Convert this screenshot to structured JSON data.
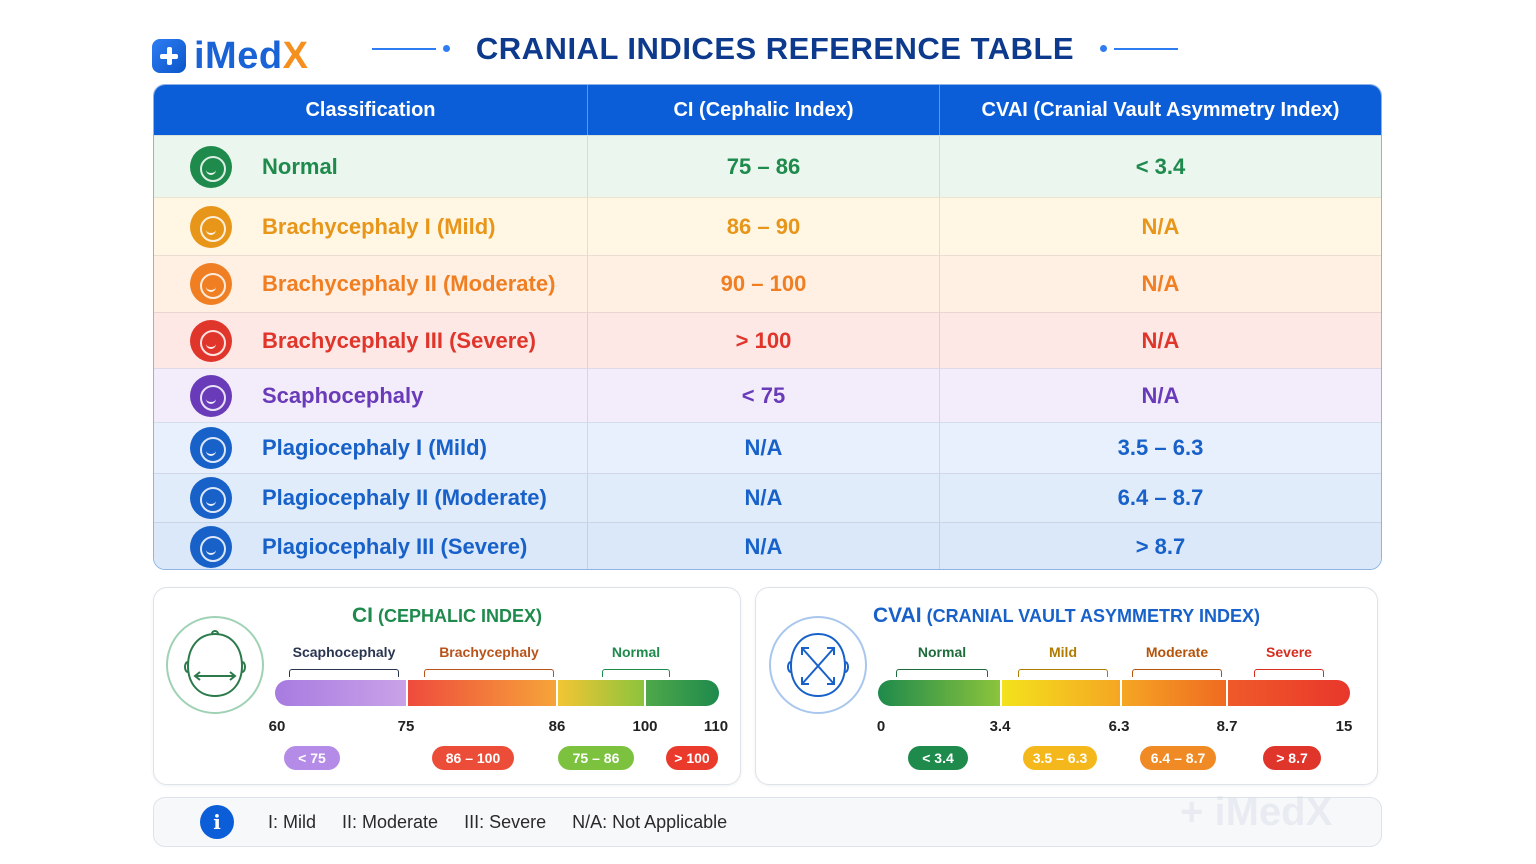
{
  "brand": {
    "name_part1": "iMed",
    "name_part2": "X",
    "watermark": "+ iMedX"
  },
  "title": "CRANIAL INDICES REFERENCE TABLE",
  "table": {
    "headers": [
      "Classification",
      "CI (Cephalic Index)",
      "CVAI (Cranial Vault Asymmetry Index)"
    ],
    "rows": [
      {
        "label": "Normal",
        "ci": "75 – 86",
        "cvai": "< 3.4",
        "color": "#1e8a4c",
        "bg": "#eaf6ee",
        "icon": "baby-face-icon"
      },
      {
        "label": "Brachycephaly I (Mild)",
        "ci": "86 – 90",
        "cvai": "N/A",
        "color": "#e8961a",
        "bg": "#fff6e4",
        "icon": "baby-face-icon"
      },
      {
        "label": "Brachycephaly II (Moderate)",
        "ci": "90 – 100",
        "cvai": "N/A",
        "color": "#ef7f22",
        "bg": "#fff0e3",
        "icon": "baby-face-icon"
      },
      {
        "label": "Brachycephaly III (Severe)",
        "ci": "> 100",
        "cvai": "N/A",
        "color": "#e0352b",
        "bg": "#fde8e6",
        "icon": "baby-face-icon"
      },
      {
        "label": "Scaphocephaly",
        "ci": "< 75",
        "cvai": "N/A",
        "color": "#6a3bb8",
        "bg": "#f2ecfb",
        "icon": "baby-face-icon"
      },
      {
        "label": "Plagiocephaly I (Mild)",
        "ci": "N/A",
        "cvai": "3.5 – 6.3",
        "color": "#1761c9",
        "bg": "#e7f0fc",
        "icon": "baby-face-icon"
      },
      {
        "label": "Plagiocephaly II (Moderate)",
        "ci": "N/A",
        "cvai": "6.4 – 8.7",
        "color": "#1761c9",
        "bg": "#e1ecfb",
        "icon": "baby-face-icon"
      },
      {
        "label": "Plagiocephaly III (Severe)",
        "ci": "N/A",
        "cvai": "> 8.7",
        "color": "#1761c9",
        "bg": "#dbe8fa",
        "icon": "baby-face-icon"
      }
    ]
  },
  "ci_panel": {
    "title_abbr": "CI",
    "title_full": "(CEPHALIC INDEX)",
    "title_color": "#1e8a4c",
    "segment_labels": [
      {
        "text": "Scaphocephaly",
        "color": "#2a3550"
      },
      {
        "text": "Brachycephaly",
        "color": "#b8531a"
      },
      {
        "text": "Normal",
        "color": "#1e8a4c"
      }
    ],
    "ticks": [
      "60",
      "75",
      "86",
      "100",
      "110"
    ],
    "pills": [
      {
        "text": "< 75",
        "color": "#b48be6"
      },
      {
        "text": "86 – 100",
        "color": "#ec4d39"
      },
      {
        "text": "75 – 86",
        "color": "#7cc23f"
      },
      {
        "text": "> 100",
        "color": "#ea3a2c"
      }
    ]
  },
  "cvai_panel": {
    "title_abbr": "CVAI",
    "title_full": "(CRANIAL VAULT ASYMMETRY INDEX)",
    "title_color": "#1761c9",
    "segment_labels": [
      {
        "text": "Normal",
        "color": "#1e6b3c"
      },
      {
        "text": "Mild",
        "color": "#b07a00"
      },
      {
        "text": "Moderate",
        "color": "#b45309"
      },
      {
        "text": "Severe",
        "color": "#d62d20"
      }
    ],
    "ticks": [
      "0",
      "3.4",
      "6.3",
      "8.7",
      "15"
    ],
    "pills": [
      {
        "text": "< 3.4",
        "color": "#1e8a4c"
      },
      {
        "text": "3.5 – 6.3",
        "color": "#f4b81c"
      },
      {
        "text": "6.4 – 8.7",
        "color": "#f08a24"
      },
      {
        "text": "> 8.7",
        "color": "#e0352b"
      }
    ]
  },
  "legend": {
    "icon": "info-icon",
    "items": [
      "I: Mild",
      "II: Moderate",
      "III: Severe",
      "N/A: Not Applicable"
    ]
  }
}
